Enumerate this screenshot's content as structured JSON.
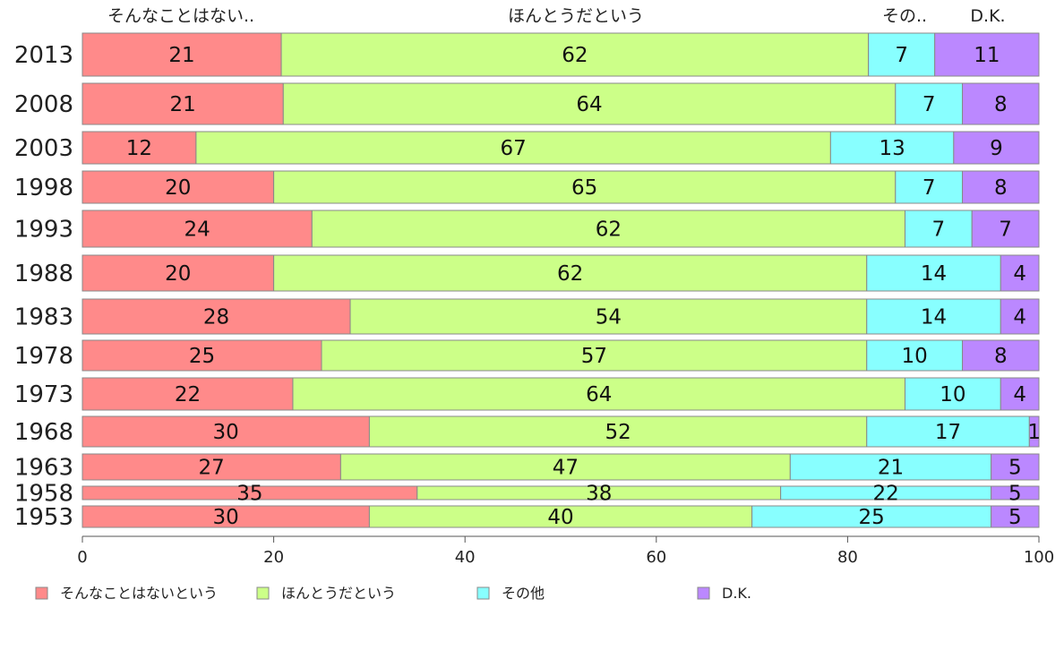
{
  "chart_data": {
    "type": "bar",
    "orientation": "horizontal",
    "stacked": true,
    "xlim": [
      0,
      100
    ],
    "x_ticks": [
      "0",
      "20",
      "40",
      "60",
      "80",
      "100"
    ],
    "top_labels": [
      "そんなことはない..",
      "ほんとうだという",
      "その..",
      "D.K."
    ],
    "categories": [
      "2013",
      "2008",
      "2003",
      "1998",
      "1993",
      "1988",
      "1983",
      "1978",
      "1973",
      "1968",
      "1963",
      "1958",
      "1953"
    ],
    "series": [
      {
        "name": "そんなことはないという",
        "color": "#ff8a8a",
        "values": [
          21,
          21,
          12,
          20,
          24,
          20,
          28,
          25,
          22,
          30,
          27,
          35,
          30
        ]
      },
      {
        "name": "ほんとうだという",
        "color": "#ccff88",
        "values": [
          62,
          64,
          67,
          65,
          62,
          62,
          54,
          57,
          64,
          52,
          47,
          38,
          40
        ]
      },
      {
        "name": "その他",
        "color": "#88ffff",
        "values": [
          7,
          7,
          13,
          7,
          7,
          14,
          14,
          10,
          10,
          17,
          21,
          22,
          25
        ]
      },
      {
        "name": "D.K.",
        "color": "#bb88ff",
        "values": [
          11,
          8,
          9,
          8,
          7,
          4,
          4,
          8,
          4,
          1,
          5,
          5,
          5
        ]
      }
    ],
    "grid": false,
    "legend_position": "bottom"
  }
}
